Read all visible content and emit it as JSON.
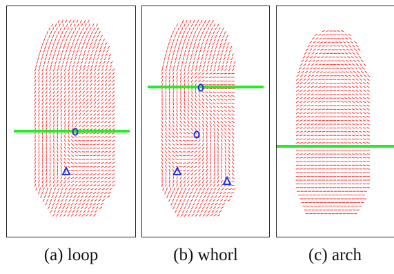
{
  "panels": [
    {
      "id": "a",
      "pattern": "loop",
      "caption": "(a) loop",
      "markers": {
        "core": 1,
        "delta": 1
      },
      "reference_line": true
    },
    {
      "id": "b",
      "pattern": "whorl",
      "caption": "(b) whorl",
      "markers": {
        "core": 2,
        "delta": 2
      },
      "reference_line": true
    },
    {
      "id": "c",
      "pattern": "arch",
      "caption": "(c) arch",
      "markers": {
        "core": 0,
        "delta": 0
      },
      "reference_line": true
    }
  ],
  "colors": {
    "orientation_field": "#ff2a2a",
    "reference_line": "#22ee22",
    "markers": "#2233dd",
    "frame": "#222222",
    "background": "#ffffff"
  },
  "icons": {
    "core": "circle-icon",
    "delta": "triangle-icon"
  }
}
